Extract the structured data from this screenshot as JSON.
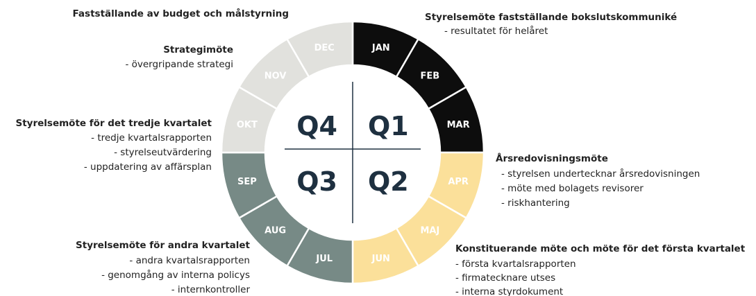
{
  "wheel": {
    "months": [
      {
        "label": "JAN",
        "quarter": 0
      },
      {
        "label": "FEB",
        "quarter": 0
      },
      {
        "label": "MAR",
        "quarter": 0
      },
      {
        "label": "APR",
        "quarter": 1
      },
      {
        "label": "MAJ",
        "quarter": 1
      },
      {
        "label": "JUN",
        "quarter": 1
      },
      {
        "label": "JUL",
        "quarter": 2
      },
      {
        "label": "AUG",
        "quarter": 2
      },
      {
        "label": "SEP",
        "quarter": 2
      },
      {
        "label": "OKT",
        "quarter": 3
      },
      {
        "label": "NOV",
        "quarter": 3
      },
      {
        "label": "DEC",
        "quarter": 3
      }
    ],
    "quarter_colors": [
      "#0d0d0d",
      "#fbe09a",
      "#778a86",
      "#e1e1dd"
    ],
    "quarters": [
      "Q1",
      "Q2",
      "Q3",
      "Q4"
    ]
  },
  "annotations": [
    {
      "title": "Fastställande av budget och målstyrning",
      "items": []
    },
    {
      "title": "Styrelsemöte fastställande bokslutskommuniké",
      "items": [
        "- resultatet för helåret"
      ]
    },
    {
      "title": "Strategimöte",
      "items": [
        "- övergripande strategi"
      ]
    },
    {
      "title": "Styrelsemöte för det tredje kvartalet",
      "items": [
        "- tredje kvartalsrapporten",
        "- styrelseutvärdering",
        "- uppdatering av affärsplan"
      ]
    },
    {
      "title": "Årsredovisningsmöte",
      "items": [
        "- styrelsen undertecknar årsredovisningen",
        "- möte med bolagets revisorer",
        "- riskhantering"
      ]
    },
    {
      "title": "Styrelsemöte för andra kvartalet",
      "items": [
        "- andra kvartalsrapporten",
        "- genomgång av interna policys",
        "- internkontroller"
      ]
    },
    {
      "title": "Konstituerande möte och möte för det första kvartalet",
      "items": [
        "- första kvartalsrapporten",
        "- firmatecknare utses",
        "- interna styrdokument"
      ]
    }
  ]
}
